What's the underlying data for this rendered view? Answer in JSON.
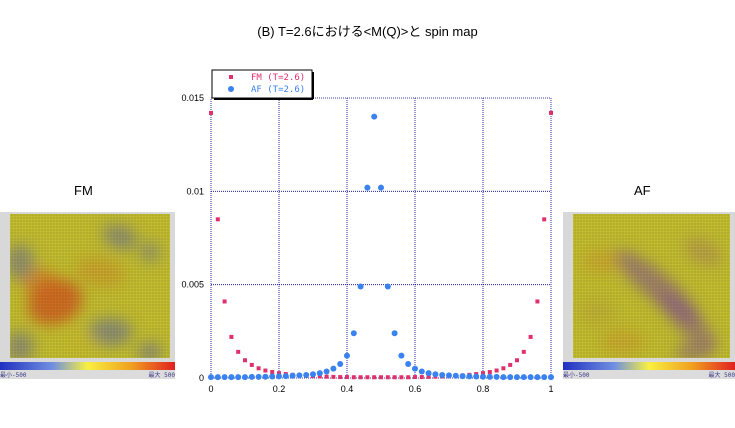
{
  "title": "(B)  T=2.6における<M(Q)>と spin map",
  "left_map": {
    "label": "FM",
    "colorbar_min": "最小-500",
    "colorbar_max": "最大 500"
  },
  "right_map": {
    "label": "AF",
    "colorbar_min": "最小-500",
    "colorbar_max": "最大 500"
  },
  "colors": {
    "fm": "#e0306a",
    "af": "#3a82f0",
    "grid": "#00008b",
    "map_base": "#c9c331"
  },
  "chart_data": {
    "type": "scatter",
    "xlim": [
      0,
      1
    ],
    "ylim": [
      0,
      0.015
    ],
    "x_ticks": [
      "0",
      "0.2",
      "0.4",
      "0.6",
      "0.8",
      "1"
    ],
    "y_ticks": [
      "0",
      "0.005",
      "0.01",
      "0.015"
    ],
    "legend_position": "top-left",
    "grid": true,
    "series": [
      {
        "name": "FM (T=2.6)",
        "marker": "square",
        "x": [
          0,
          0.02,
          0.04,
          0.06,
          0.08,
          0.1,
          0.12,
          0.14,
          0.16,
          0.18,
          0.2,
          0.22,
          0.24,
          0.26,
          0.28,
          0.3,
          0.32,
          0.34,
          0.36,
          0.38,
          0.4,
          0.42,
          0.44,
          0.46,
          0.48,
          0.5,
          0.52,
          0.54,
          0.56,
          0.58,
          0.6,
          0.62,
          0.64,
          0.66,
          0.68,
          0.7,
          0.72,
          0.74,
          0.76,
          0.78,
          0.8,
          0.82,
          0.84,
          0.86,
          0.88,
          0.9,
          0.92,
          0.94,
          0.96,
          0.98,
          1.0
        ],
        "y": [
          0.0142,
          0.0085,
          0.0041,
          0.0022,
          0.0014,
          0.00095,
          0.0007,
          0.00052,
          0.0004,
          0.00032,
          0.00026,
          0.00021,
          0.00017,
          0.00014,
          0.00012,
          0.0001,
          8e-05,
          7e-05,
          6e-05,
          5e-05,
          5e-05,
          4e-05,
          4e-05,
          4e-05,
          4e-05,
          4e-05,
          4e-05,
          4e-05,
          4e-05,
          4e-05,
          5e-05,
          5e-05,
          6e-05,
          7e-05,
          8e-05,
          0.0001,
          0.00012,
          0.00014,
          0.00017,
          0.00021,
          0.00026,
          0.00032,
          0.0004,
          0.00052,
          0.0007,
          0.00095,
          0.0014,
          0.0022,
          0.0041,
          0.0085,
          0.0142
        ]
      },
      {
        "name": "AF (T=2.6)",
        "marker": "circle",
        "x": [
          0,
          0.02,
          0.04,
          0.06,
          0.08,
          0.1,
          0.12,
          0.14,
          0.16,
          0.18,
          0.2,
          0.22,
          0.24,
          0.26,
          0.28,
          0.3,
          0.32,
          0.34,
          0.36,
          0.38,
          0.4,
          0.42,
          0.44,
          0.46,
          0.48,
          0.5,
          0.52,
          0.54,
          0.56,
          0.58,
          0.6,
          0.62,
          0.64,
          0.66,
          0.68,
          0.7,
          0.72,
          0.74,
          0.76,
          0.78,
          0.8,
          0.82,
          0.84,
          0.86,
          0.88,
          0.9,
          0.92,
          0.94,
          0.96,
          0.98,
          1.0
        ],
        "y": [
          5e-05,
          5e-05,
          5e-05,
          5e-05,
          5e-05,
          5e-05,
          6e-05,
          6e-05,
          7e-05,
          8e-05,
          9e-05,
          0.0001,
          0.00012,
          0.00014,
          0.00016,
          0.0002,
          0.00026,
          0.00035,
          0.0005,
          0.00075,
          0.0012,
          0.0024,
          0.0049,
          0.0102,
          0.014,
          0.0102,
          0.0049,
          0.0024,
          0.0012,
          0.00075,
          0.0005,
          0.00035,
          0.00026,
          0.0002,
          0.00016,
          0.00014,
          0.00012,
          0.0001,
          9e-05,
          8e-05,
          7e-05,
          6e-05,
          6e-05,
          5e-05,
          5e-05,
          5e-05,
          5e-05,
          5e-05,
          5e-05,
          5e-05,
          5e-05
        ]
      }
    ]
  }
}
